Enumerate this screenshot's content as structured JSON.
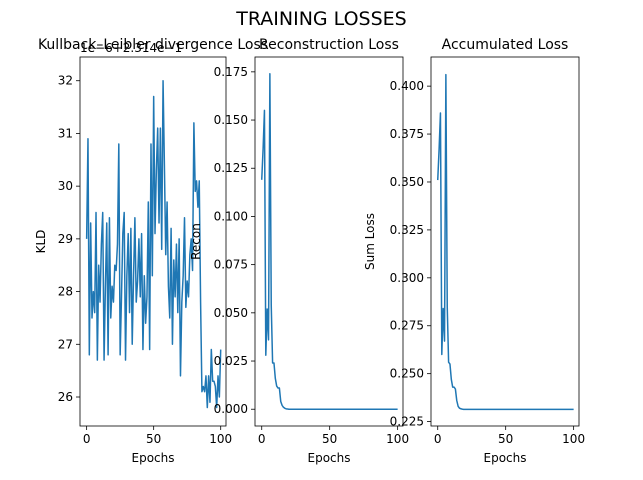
{
  "figure": {
    "suptitle": "TRAINING LOSSES"
  },
  "chart_data": [
    {
      "type": "line",
      "title": "Kullback–Leibler divergence Loss",
      "xlabel": "Epochs",
      "ylabel": "KLD",
      "offset_text": "1e−6+2.314e−1",
      "xlim": [
        -4.95,
        103.95
      ],
      "ylim": [
        25.45,
        32.45
      ],
      "xticks": [
        0,
        50,
        100
      ],
      "yticks": [
        26,
        27,
        28,
        29,
        30,
        31,
        32
      ],
      "color": "#1f77b4",
      "series": [
        {
          "values": [
            29.0,
            30.9,
            26.8,
            29.3,
            27.5,
            28.0,
            27.6,
            29.5,
            26.7,
            28.5,
            27.8,
            28.9,
            29.5,
            26.7,
            28.1,
            29.3,
            26.8,
            29.4,
            27.5,
            28.1,
            27.8,
            28.5,
            28.4,
            28.9,
            30.8,
            26.8,
            27.9,
            29.1,
            29.5,
            26.7,
            28.3,
            29.1,
            27.6,
            29.2,
            27.0,
            28.3,
            29.4,
            27.8,
            28.2,
            29.0,
            27.9,
            29.1,
            26.9,
            28.3,
            27.4,
            27.9,
            29.7,
            26.9,
            30.8,
            28.3,
            31.7,
            29.1,
            30.3,
            31.1,
            29.3,
            31.1,
            28.8,
            32.0,
            30.4,
            28.7,
            29.7,
            28.1,
            27.5,
            29.2,
            27.0,
            28.6,
            27.9,
            28.9,
            27.6,
            29.0,
            26.4,
            27.8,
            28.3,
            29.4,
            27.7,
            28.2,
            27.9,
            28.7,
            29.0,
            28.4,
            31.2,
            29.9,
            30.1,
            29.6,
            30.1,
            27.8,
            26.1,
            26.2,
            26.1,
            26.4,
            25.8,
            26.4,
            25.9,
            26.9,
            26.3,
            26.3,
            26.2,
            25.8,
            26.4,
            26.0,
            26.9
          ]
        }
      ]
    },
    {
      "type": "line",
      "title": "Reconstruction Loss",
      "xlabel": "Epochs",
      "ylabel": "Recon",
      "xlim": [
        -4.95,
        103.95
      ],
      "ylim": [
        -0.0087,
        0.1827
      ],
      "xticks": [
        0,
        50,
        100
      ],
      "yticks": [
        0.0,
        0.025,
        0.05,
        0.075,
        0.1,
        0.125,
        0.15,
        0.175
      ],
      "ytick_labels": [
        "0.000",
        "0.025",
        "0.050",
        "0.075",
        "0.100",
        "0.125",
        "0.150",
        "0.175"
      ],
      "color": "#1f77b4",
      "series": [
        {
          "values": [
            0.119,
            0.135,
            0.155,
            0.028,
            0.052,
            0.036,
            0.174,
            0.054,
            0.024,
            0.024,
            0.016,
            0.012,
            0.011,
            0.011,
            0.004,
            0.002,
            0.001,
            0.0005,
            0.0002,
            0.0001,
            0,
            0,
            0,
            0,
            0,
            0,
            0,
            0,
            0,
            0,
            0,
            0,
            0,
            0,
            0,
            0,
            0,
            0,
            0,
            0,
            0,
            0,
            0,
            0,
            0,
            0,
            0,
            0,
            0,
            0,
            0,
            0,
            0,
            0,
            0,
            0,
            0,
            0,
            0,
            0,
            0,
            0,
            0,
            0,
            0,
            0,
            0,
            0,
            0,
            0,
            0,
            0,
            0,
            0,
            0,
            0,
            0,
            0,
            0,
            0,
            0,
            0,
            0,
            0,
            0,
            0,
            0,
            0,
            0,
            0,
            0,
            0,
            0,
            0,
            0,
            0,
            0,
            0,
            0,
            0,
            0
          ]
        }
      ]
    },
    {
      "type": "line",
      "title": "Accumulated Loss",
      "xlabel": "Epochs",
      "ylabel": "Sum Loss",
      "xlim": [
        -4.95,
        103.95
      ],
      "ylim": [
        0.2227,
        0.4152
      ],
      "xticks": [
        0,
        50,
        100
      ],
      "yticks": [
        0.225,
        0.25,
        0.275,
        0.3,
        0.325,
        0.35,
        0.375,
        0.4
      ],
      "ytick_labels": [
        "0.225",
        "0.250",
        "0.275",
        "0.300",
        "0.325",
        "0.350",
        "0.375",
        "0.400"
      ],
      "color": "#1f77b4",
      "series": [
        {
          "values": [
            0.351,
            0.367,
            0.386,
            0.26,
            0.284,
            0.267,
            0.406,
            0.285,
            0.256,
            0.255,
            0.247,
            0.243,
            0.243,
            0.242,
            0.236,
            0.233,
            0.232,
            0.2317,
            0.2315,
            0.2314,
            0.2314,
            0.2314,
            0.2314,
            0.2314,
            0.2314,
            0.2314,
            0.2314,
            0.2314,
            0.2314,
            0.2314,
            0.2314,
            0.2314,
            0.2314,
            0.2314,
            0.2314,
            0.2314,
            0.2314,
            0.2314,
            0.2314,
            0.2314,
            0.2314,
            0.2314,
            0.2314,
            0.2314,
            0.2314,
            0.2314,
            0.2314,
            0.2314,
            0.2314,
            0.2314,
            0.2314,
            0.2314,
            0.2314,
            0.2314,
            0.2314,
            0.2314,
            0.2314,
            0.2314,
            0.2314,
            0.2314,
            0.2314,
            0.2314,
            0.2314,
            0.2314,
            0.2314,
            0.2314,
            0.2314,
            0.2314,
            0.2314,
            0.2314,
            0.2314,
            0.2314,
            0.2314,
            0.2314,
            0.2314,
            0.2314,
            0.2314,
            0.2314,
            0.2314,
            0.2314,
            0.2314,
            0.2314,
            0.2314,
            0.2314,
            0.2314,
            0.2314,
            0.2314,
            0.2314,
            0.2314,
            0.2314,
            0.2314,
            0.2314,
            0.2314,
            0.2314,
            0.2314,
            0.2314,
            0.2314,
            0.2314,
            0.2314,
            0.2314,
            0.2314
          ]
        }
      ]
    }
  ]
}
